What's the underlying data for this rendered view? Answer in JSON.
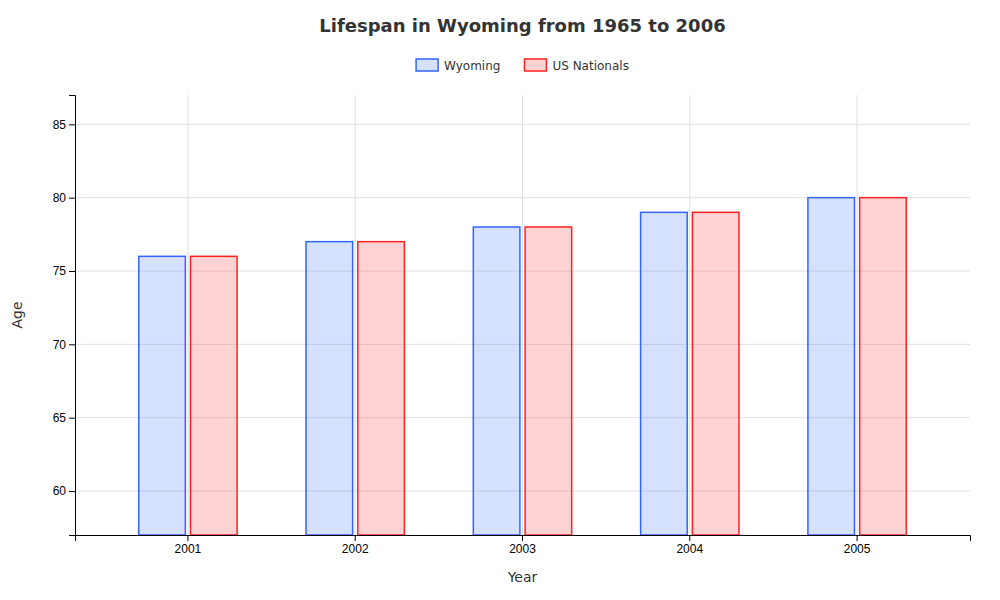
{
  "chart_data": {
    "type": "bar",
    "title": "Lifespan in Wyoming from 1965 to 2006",
    "xlabel": "Year",
    "ylabel": "Age",
    "categories": [
      "2001",
      "2002",
      "2003",
      "2004",
      "2005"
    ],
    "series": [
      {
        "name": "Wyoming",
        "color": "#3366ff",
        "values": [
          76,
          77,
          78,
          79,
          80
        ]
      },
      {
        "name": "US Nationals",
        "color": "#ff2222",
        "values": [
          76,
          77,
          78,
          79,
          80
        ]
      }
    ],
    "ylim": [
      57,
      87
    ],
    "yticks": [
      60,
      65,
      70,
      75,
      80,
      85
    ],
    "grid": true,
    "legend": "top"
  }
}
